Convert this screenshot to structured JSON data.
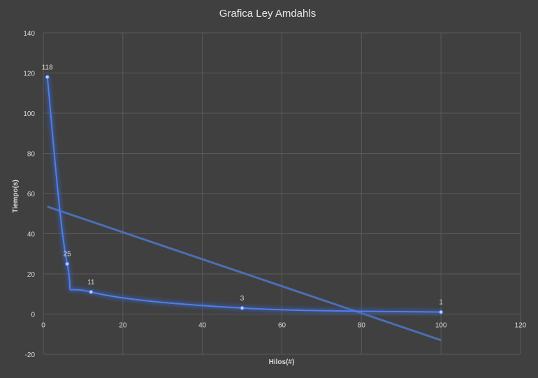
{
  "chart_data": {
    "type": "scatter",
    "title": "Grafica Ley Amdahls",
    "xlabel": "Hilos(#)",
    "ylabel": "Tiempo(s)",
    "xlim": [
      0,
      120
    ],
    "ylim": [
      -20,
      140
    ],
    "x_ticks": [
      "0",
      "20",
      "40",
      "60",
      "80",
      "100",
      "120"
    ],
    "y_ticks": [
      "-20",
      "0",
      "20",
      "40",
      "60",
      "80",
      "100",
      "120",
      "140"
    ],
    "grid": true,
    "series": [
      {
        "line": "smooth",
        "markers": true,
        "points": [
          {
            "x": 1,
            "y": 118,
            "label": "118"
          },
          {
            "x": 6,
            "y": 25,
            "label": "25"
          },
          {
            "x": 12,
            "y": 11,
            "label": "11"
          },
          {
            "x": 50,
            "y": 3,
            "label": "3"
          },
          {
            "x": 100,
            "y": 1,
            "label": "1"
          }
        ]
      },
      {
        "kind": "trendline",
        "points": [
          {
            "x": 1,
            "y": 53.5
          },
          {
            "x": 100,
            "y": -13
          }
        ]
      }
    ],
    "colors": {
      "background": "#404040",
      "gridline": "#5a5a5a",
      "series": "#4f7fe8",
      "glow": "#3a66d0",
      "trendline": "#4a6fb5"
    }
  }
}
